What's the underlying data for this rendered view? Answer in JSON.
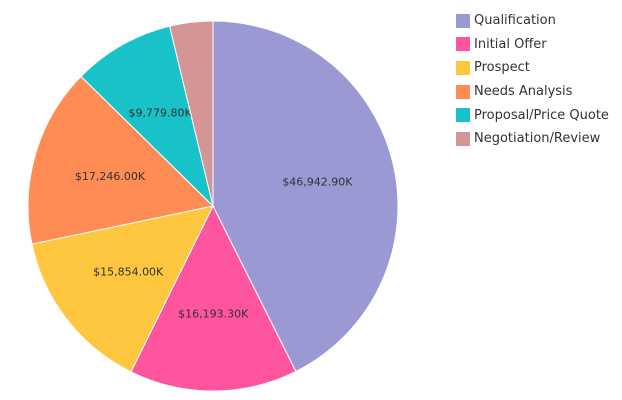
{
  "chart_data": {
    "type": "pie",
    "title": "",
    "start_angle_deg": 0,
    "direction": "clockwise",
    "slices": [
      {
        "name": "Qualification",
        "value": 46942.9,
        "label": "$46,942.90K",
        "color": "#9b99d4"
      },
      {
        "name": "Initial Offer",
        "value": 16193.3,
        "label": "$16,193.30K",
        "color": "#ff559f"
      },
      {
        "name": "Prospect",
        "value": 15854.0,
        "label": "$15,854.00K",
        "color": "#ffc63f"
      },
      {
        "name": "Needs Analysis",
        "value": 17246.0,
        "label": "$17,246.00K",
        "color": "#ff8c55"
      },
      {
        "name": "Proposal/Price Quote",
        "value": 9779.8,
        "label": "$9,779.80K",
        "color": "#19c2c9"
      },
      {
        "name": "Negotiation/Review",
        "value": 4150.0,
        "label": "",
        "color": "#d49597"
      }
    ],
    "legend_position": "top-right"
  }
}
